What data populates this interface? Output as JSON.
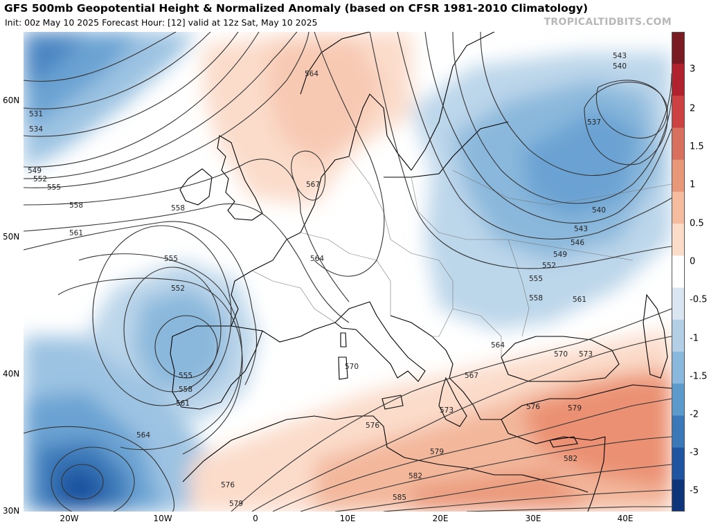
{
  "header": {
    "title": "GFS 500mb Geopotential Height & Normalized Anomaly (based on CFSR 1981-2010 Climatology)",
    "subtitle": "Init: 00z May 10 2025   Forecast Hour: [12]   valid at 12z Sat, May 10 2025",
    "brand": "TROPICALTIDBITS.COM"
  },
  "axes": {
    "lat_labels": [
      "60N",
      "50N",
      "40N",
      "30N"
    ],
    "lon_labels": [
      "20W",
      "10W",
      "0",
      "10E",
      "20E",
      "30E",
      "40E"
    ]
  },
  "colorbar": {
    "labels": [
      "3",
      "2",
      "1.5",
      "1",
      "0.5",
      "0",
      "-0.5",
      "-1",
      "-1.5",
      "-2",
      "-3",
      "-5"
    ],
    "colors": [
      "#7a1a22",
      "#b0232e",
      "#cc4242",
      "#d87060",
      "#e89878",
      "#f5bca0",
      "#fbdcc8",
      "#ffffff",
      "#d9e6f2",
      "#b3cfe5",
      "#8ab8dc",
      "#5c9acb",
      "#3a78b8",
      "#1f55a0",
      "#0e357a"
    ]
  },
  "contours": {
    "labels": [
      "531",
      "534",
      "549",
      "552",
      "555",
      "558",
      "561",
      "564",
      "567",
      "543",
      "540",
      "537",
      "546",
      "570",
      "573",
      "576",
      "579",
      "582",
      "585"
    ]
  },
  "map": {
    "anomaly_colors": {
      "strong_negative": "#2f6db5",
      "negative": "#6aa3d3",
      "weak_negative": "#bcd6ea",
      "weak_positive": "#fbdccb",
      "positive": "#f3b89c",
      "strong_positive": "#eb9072"
    },
    "contour_color": "#333333",
    "coast_color": "#000000"
  }
}
